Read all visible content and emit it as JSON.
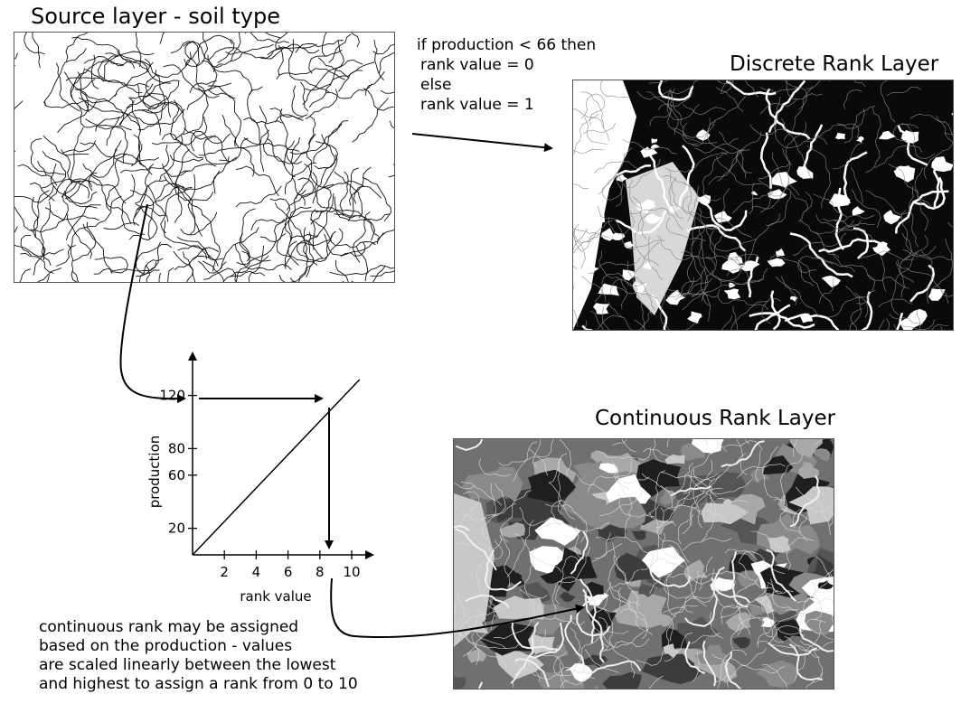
{
  "titles": {
    "source": "Source layer - soil type",
    "discrete": "Discrete Rank Layer",
    "continuous": "Continuous Rank Layer"
  },
  "rule_lines": [
    "if production < 66 then",
    "rank value = 0",
    "else",
    "rank value = 1"
  ],
  "caption_lines": [
    "continuous rank may be assigned",
    "based on the production - values",
    "are scaled linearly between the lowest",
    "and highest to assign a rank from 0 to 10"
  ],
  "chart_data": {
    "type": "line",
    "xlabel": "rank value",
    "ylabel": "production",
    "x_ticks": [
      2,
      4,
      6,
      8,
      10
    ],
    "y_ticks": [
      20,
      60,
      80,
      120
    ],
    "x": [
      0,
      10.5
    ],
    "y": [
      0,
      132
    ]
  },
  "colors": {
    "line": "#000000",
    "discrete_high": "#0a0a0a",
    "discrete_low": "#ffffff",
    "continuous_dark": "#1e1e1e",
    "continuous_mid": "#707070",
    "continuous_light": "#c8c8c8"
  }
}
